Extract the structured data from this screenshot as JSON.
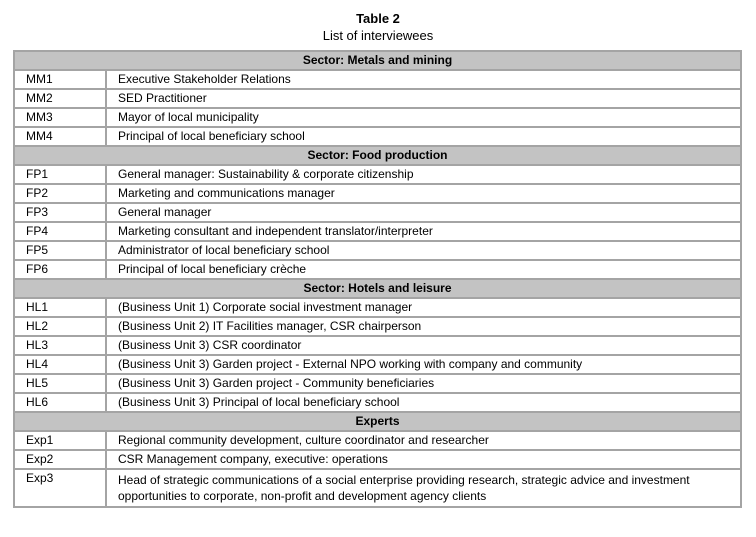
{
  "title": "Table 2",
  "subtitle": "List of interviewees",
  "colors": {
    "section_header_bg": "#c3c3c3",
    "table_border": "#a4a4a4",
    "text": "#000000",
    "page_bg": "#ffffff"
  },
  "table": {
    "columns": [
      "code",
      "role"
    ],
    "sections": [
      {
        "header": "Sector: Metals and mining",
        "rows": [
          {
            "code": "MM1",
            "role": "Executive Stakeholder Relations"
          },
          {
            "code": "MM2",
            "role": "SED Practitioner"
          },
          {
            "code": "MM3",
            "role": "Mayor of local municipality"
          },
          {
            "code": "MM4",
            "role": "Principal of local beneficiary school"
          }
        ]
      },
      {
        "header": "Sector: Food production",
        "rows": [
          {
            "code": "FP1",
            "role": "General manager: Sustainability & corporate citizenship"
          },
          {
            "code": "FP2",
            "role": "Marketing and communications manager"
          },
          {
            "code": "FP3",
            "role": "General manager"
          },
          {
            "code": "FP4",
            "role": "Marketing consultant and independent translator/interpreter"
          },
          {
            "code": "FP5",
            "role": "Administrator of local beneficiary school"
          },
          {
            "code": "FP6",
            "role": "Principal of local beneficiary crèche"
          }
        ]
      },
      {
        "header": "Sector: Hotels and leisure",
        "rows": [
          {
            "code": "HL1",
            "role": "(Business Unit 1) Corporate social investment manager"
          },
          {
            "code": "HL2",
            "role": "(Business Unit 2) IT Facilities manager, CSR chairperson"
          },
          {
            "code": "HL3",
            "role": "(Business Unit 3) CSR coordinator"
          },
          {
            "code": "HL4",
            "role": "(Business Unit 3) Garden project - External NPO working with company and community"
          },
          {
            "code": "HL5",
            "role": "(Business Unit 3) Garden project - Community beneficiaries"
          },
          {
            "code": "HL6",
            "role": "(Business Unit 3) Principal of local beneficiary school"
          }
        ]
      },
      {
        "header": "Experts",
        "rows": [
          {
            "code": "Exp1",
            "role": "Regional community development, culture coordinator and researcher"
          },
          {
            "code": "Exp2",
            "role": "CSR Management company, executive: operations"
          },
          {
            "code": "Exp3",
            "role": "Head of strategic communications of a social enterprise providing research, strategic advice and investment opportunities to corporate, non-profit and development agency clients"
          }
        ]
      }
    ]
  }
}
